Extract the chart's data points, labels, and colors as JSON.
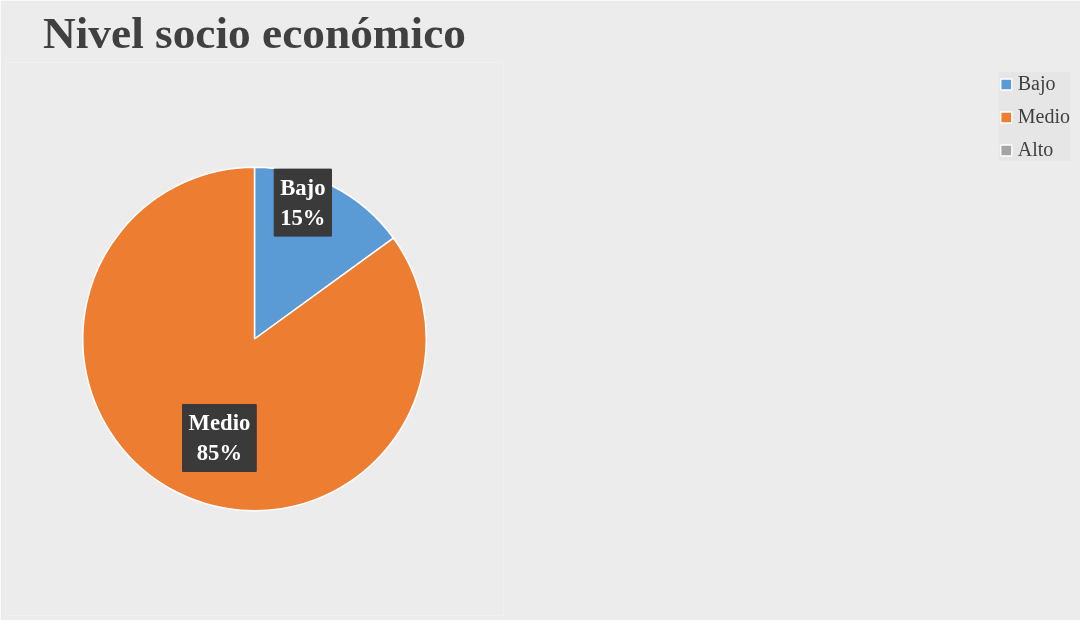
{
  "chart_data": {
    "type": "pie",
    "title": "Nivel socio económico",
    "categories": [
      "Bajo",
      "Medio",
      "Alto"
    ],
    "values": [
      15,
      85,
      0
    ],
    "colors": [
      "#5b9bd5",
      "#ed7d31",
      "#a5a5a5"
    ],
    "value_labels": [
      "Bajo\n15%",
      "Medio\n85%",
      null
    ],
    "legend": "right"
  }
}
